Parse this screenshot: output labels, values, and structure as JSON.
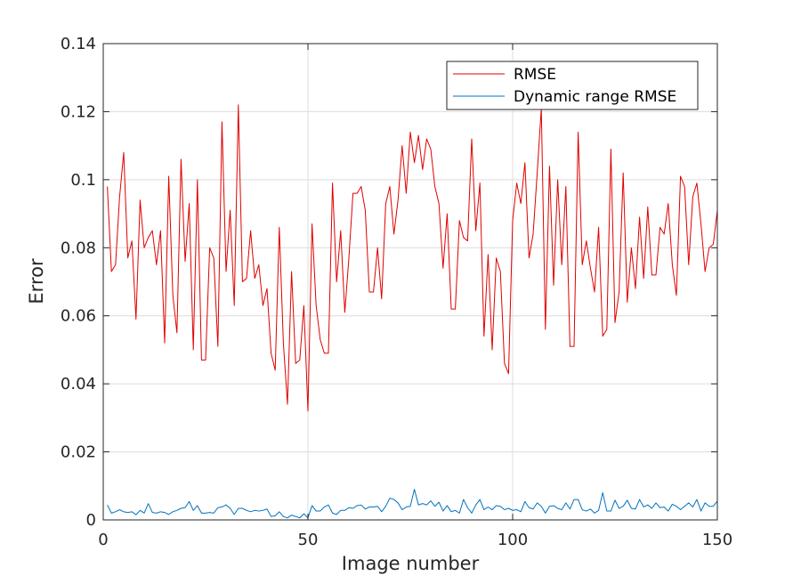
{
  "chart_data": {
    "type": "line",
    "title": "",
    "xlabel": "Image number",
    "ylabel": "Error",
    "xlim": [
      0,
      150
    ],
    "ylim": [
      0,
      0.14
    ],
    "xticks": [
      0,
      50,
      100,
      150
    ],
    "yticks": [
      0,
      0.02,
      0.04,
      0.06,
      0.08,
      0.1,
      0.12,
      0.14
    ],
    "xtick_labels": [
      "0",
      "50",
      "100",
      "150"
    ],
    "ytick_labels": [
      "0",
      "0.02",
      "0.04",
      "0.06",
      "0.08",
      "0.1",
      "0.12",
      "0.14"
    ],
    "grid": true,
    "legend_position": "top-right",
    "series": [
      {
        "name": "RMSE",
        "color": "#e00000",
        "x_start": 1,
        "values": [
          0.098,
          0.073,
          0.075,
          0.095,
          0.108,
          0.077,
          0.082,
          0.059,
          0.094,
          0.08,
          0.083,
          0.085,
          0.075,
          0.085,
          0.052,
          0.101,
          0.066,
          0.055,
          0.106,
          0.076,
          0.093,
          0.05,
          0.1,
          0.047,
          0.047,
          0.08,
          0.077,
          0.051,
          0.117,
          0.073,
          0.091,
          0.063,
          0.122,
          0.07,
          0.071,
          0.085,
          0.071,
          0.075,
          0.063,
          0.068,
          0.049,
          0.044,
          0.086,
          0.052,
          0.034,
          0.073,
          0.046,
          0.047,
          0.063,
          0.032,
          0.087,
          0.063,
          0.053,
          0.049,
          0.049,
          0.099,
          0.07,
          0.085,
          0.061,
          0.077,
          0.096,
          0.096,
          0.098,
          0.091,
          0.067,
          0.067,
          0.08,
          0.065,
          0.093,
          0.098,
          0.084,
          0.094,
          0.11,
          0.096,
          0.114,
          0.105,
          0.113,
          0.103,
          0.112,
          0.109,
          0.098,
          0.093,
          0.074,
          0.09,
          0.062,
          0.062,
          0.088,
          0.083,
          0.082,
          0.112,
          0.085,
          0.099,
          0.054,
          0.078,
          0.05,
          0.077,
          0.073,
          0.046,
          0.043,
          0.088,
          0.099,
          0.093,
          0.105,
          0.077,
          0.084,
          0.102,
          0.121,
          0.056,
          0.104,
          0.069,
          0.1,
          0.075,
          0.098,
          0.051,
          0.051,
          0.114,
          0.075,
          0.082,
          0.074,
          0.067,
          0.086,
          0.054,
          0.056,
          0.109,
          0.058,
          0.067,
          0.102,
          0.064,
          0.08,
          0.068,
          0.089,
          0.071,
          0.092,
          0.072,
          0.072,
          0.086,
          0.084,
          0.093,
          0.075,
          0.066,
          0.101,
          0.098,
          0.075,
          0.095,
          0.099,
          0.087,
          0.073,
          0.08,
          0.081,
          0.091
        ]
      },
      {
        "name": "Dynamic range RMSE",
        "color": "#0072bd",
        "x_start": 1,
        "values": [
          0.0044,
          0.002,
          0.0024,
          0.003,
          0.0024,
          0.0022,
          0.0024,
          0.0015,
          0.0028,
          0.002,
          0.0048,
          0.0022,
          0.002,
          0.0024,
          0.0022,
          0.0016,
          0.0024,
          0.0028,
          0.0034,
          0.0036,
          0.0054,
          0.0028,
          0.0042,
          0.002,
          0.002,
          0.0022,
          0.002,
          0.0036,
          0.0038,
          0.0044,
          0.0034,
          0.0016,
          0.0034,
          0.0034,
          0.0028,
          0.0024,
          0.0028,
          0.0026,
          0.0028,
          0.0032,
          0.001,
          0.0012,
          0.0024,
          0.001,
          0.0006,
          0.0014,
          0.001,
          0.0006,
          0.0018,
          0.0006,
          0.0042,
          0.0026,
          0.0026,
          0.0038,
          0.0044,
          0.002,
          0.0016,
          0.0028,
          0.0028,
          0.0036,
          0.0034,
          0.0042,
          0.0044,
          0.0032,
          0.0038,
          0.0038,
          0.004,
          0.0024,
          0.004,
          0.0064,
          0.006,
          0.005,
          0.003,
          0.0038,
          0.004,
          0.009,
          0.0044,
          0.0048,
          0.0044,
          0.0056,
          0.004,
          0.0052,
          0.0026,
          0.0042,
          0.0024,
          0.0028,
          0.002,
          0.006,
          0.0036,
          0.002,
          0.0044,
          0.006,
          0.003,
          0.0038,
          0.003,
          0.0042,
          0.004,
          0.003,
          0.0034,
          0.0028,
          0.003,
          0.0024,
          0.0054,
          0.0036,
          0.0032,
          0.005,
          0.004,
          0.002,
          0.004,
          0.0042,
          0.0034,
          0.003,
          0.005,
          0.0032,
          0.006,
          0.006,
          0.003,
          0.0026,
          0.0032,
          0.002,
          0.0028,
          0.008,
          0.0026,
          0.0026,
          0.0058,
          0.0034,
          0.004,
          0.0058,
          0.0034,
          0.0032,
          0.006,
          0.0038,
          0.0044,
          0.0034,
          0.005,
          0.0036,
          0.0038,
          0.0026,
          0.0046,
          0.004,
          0.003,
          0.004,
          0.005,
          0.0038,
          0.006,
          0.0026,
          0.005,
          0.004,
          0.004,
          0.0055
        ]
      }
    ]
  }
}
